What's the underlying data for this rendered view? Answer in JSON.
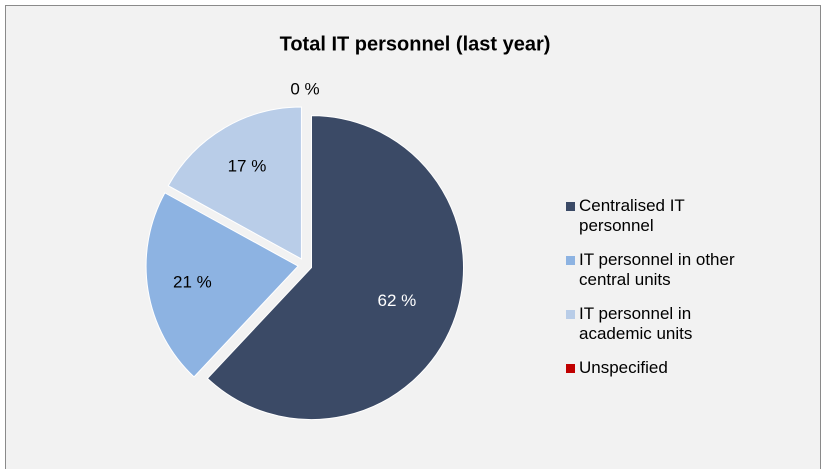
{
  "chart_data": {
    "type": "pie",
    "title": "Total IT personnel (last year)",
    "categories": [
      "Centralised IT personnel",
      "IT personnel in other central units",
      "IT personnel in academic units",
      "Unspecified"
    ],
    "values": [
      62,
      21,
      17,
      0
    ],
    "value_labels": [
      "62 %",
      "21 %",
      "17 %",
      "0 %"
    ],
    "colors": [
      "#3b4a66",
      "#8db3e2",
      "#b9cde8",
      "#c00000"
    ],
    "legend": "right"
  }
}
